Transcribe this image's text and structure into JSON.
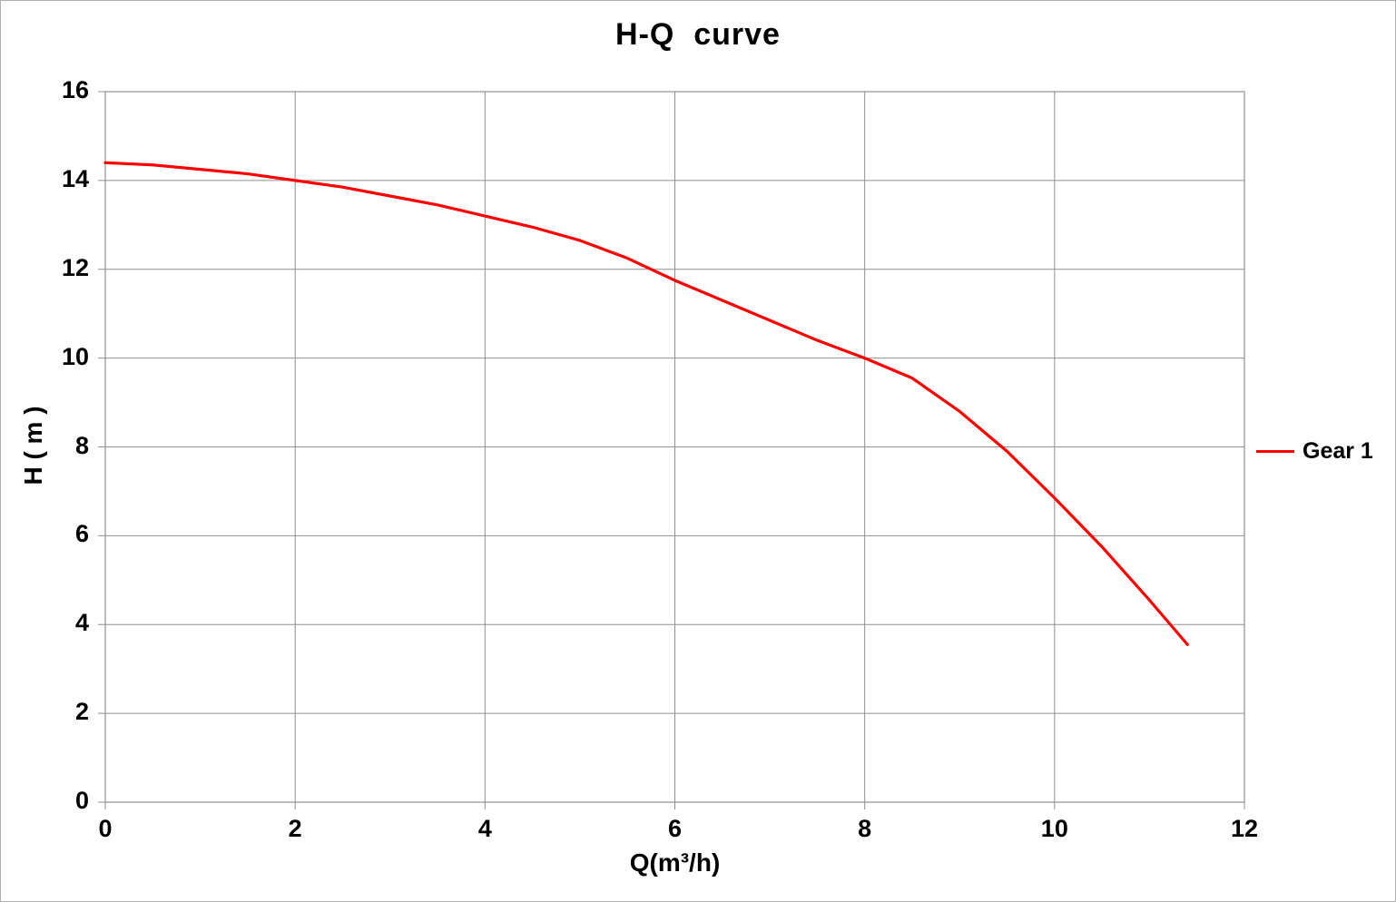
{
  "colors": {
    "background": "#ffffff",
    "outer_border": "#b0b0b0",
    "grid": "#8f8f8f",
    "text": "#000000",
    "curve": "#ff0000"
  },
  "chart_data": {
    "type": "line",
    "title": "H-Q  curve",
    "xlabel": "Q(m³/h)",
    "ylabel": "H ( m )",
    "xlim": [
      0,
      12
    ],
    "ylim": [
      0,
      16
    ],
    "xticks": [
      0,
      2,
      4,
      6,
      8,
      10,
      12
    ],
    "yticks": [
      0,
      2,
      4,
      6,
      8,
      10,
      12,
      14,
      16
    ],
    "grid": true,
    "legend_position": "right-middle",
    "x": [
      0,
      0.5,
      1,
      1.5,
      2,
      2.5,
      3,
      3.5,
      4,
      4.5,
      5,
      5.5,
      6,
      6.5,
      7,
      7.5,
      8,
      8.5,
      9,
      9.5,
      10,
      10.5,
      11,
      11.4
    ],
    "series": [
      {
        "name": "Gear 1",
        "color": "#ff0000",
        "values": [
          14.4,
          14.35,
          14.25,
          14.15,
          14.0,
          13.85,
          13.65,
          13.45,
          13.2,
          12.95,
          12.65,
          12.25,
          11.75,
          11.3,
          10.85,
          10.4,
          10.0,
          9.55,
          8.8,
          7.9,
          6.85,
          5.75,
          4.55,
          3.55
        ]
      }
    ]
  }
}
